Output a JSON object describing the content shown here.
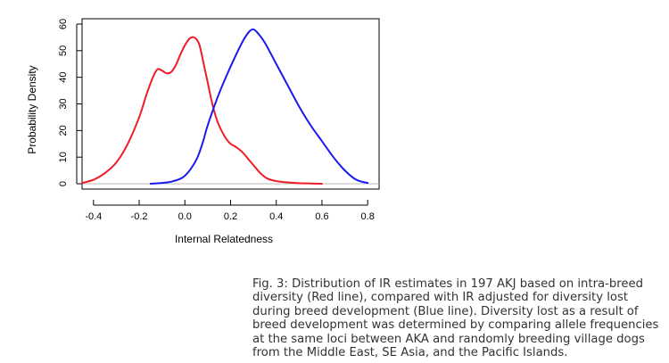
{
  "chart_data": {
    "type": "line",
    "title": "",
    "xlabel": "Internal Relatedness",
    "ylabel": "Probability Density",
    "xlim": [
      -0.45,
      0.85
    ],
    "ylim": [
      -2,
      62
    ],
    "x_ticks": [
      -0.4,
      -0.2,
      0.0,
      0.2,
      0.4,
      0.6,
      0.8
    ],
    "x_tick_labels": [
      "-0.4",
      "-0.2",
      "0.0",
      "0.2",
      "0.4",
      "0.6",
      "0.8"
    ],
    "y_ticks": [
      0,
      10,
      20,
      30,
      40,
      50,
      60
    ],
    "y_tick_labels": [
      "0",
      "10",
      "20",
      "30",
      "40",
      "50",
      "60"
    ],
    "grid": false,
    "legend": "none",
    "series": [
      {
        "color": "#ee1c25",
        "x": [
          -0.45,
          -0.4,
          -0.35,
          -0.3,
          -0.25,
          -0.2,
          -0.17,
          -0.14,
          -0.12,
          -0.1,
          -0.08,
          -0.06,
          -0.04,
          -0.02,
          0.0,
          0.02,
          0.04,
          0.06,
          0.07,
          0.08,
          0.1,
          0.12,
          0.14,
          0.16,
          0.18,
          0.2,
          0.22,
          0.25,
          0.28,
          0.3,
          0.33,
          0.36,
          0.4,
          0.45,
          0.5,
          0.55,
          0.6
        ],
        "y": [
          0.3,
          1.5,
          4,
          8,
          15,
          25,
          33,
          40,
          43,
          42.5,
          41.5,
          42,
          44.5,
          48.5,
          52,
          54.5,
          55,
          53,
          50,
          46,
          38,
          30,
          24,
          20,
          17,
          15,
          14,
          12,
          9,
          7,
          4,
          2,
          1,
          0.5,
          0.2,
          0.1,
          0.0
        ]
      },
      {
        "color": "#1a1aee",
        "x": [
          -0.15,
          -0.1,
          -0.05,
          0.0,
          0.05,
          0.08,
          0.1,
          0.15,
          0.2,
          0.25,
          0.28,
          0.3,
          0.32,
          0.35,
          0.4,
          0.45,
          0.5,
          0.55,
          0.6,
          0.65,
          0.7,
          0.75,
          0.8
        ],
        "y": [
          0,
          0.3,
          1,
          3,
          9,
          16,
          22,
          34,
          44,
          53,
          57,
          58,
          56.5,
          53,
          45,
          37,
          29,
          22,
          16,
          10,
          5,
          1.5,
          0.3
        ]
      }
    ]
  },
  "caption": "Fig. 3: Distribution of IR estimates in 197 AKJ based on intra-breed diversity (Red line), compared with IR adjusted for diversity lost during breed development (Blue line). Diversity lost as a result of breed development was determined by comparing allele frequencies at the same loci between AKA and randomly breeding village dogs from the Middle East, SE Asia, and the Pacific Islands."
}
